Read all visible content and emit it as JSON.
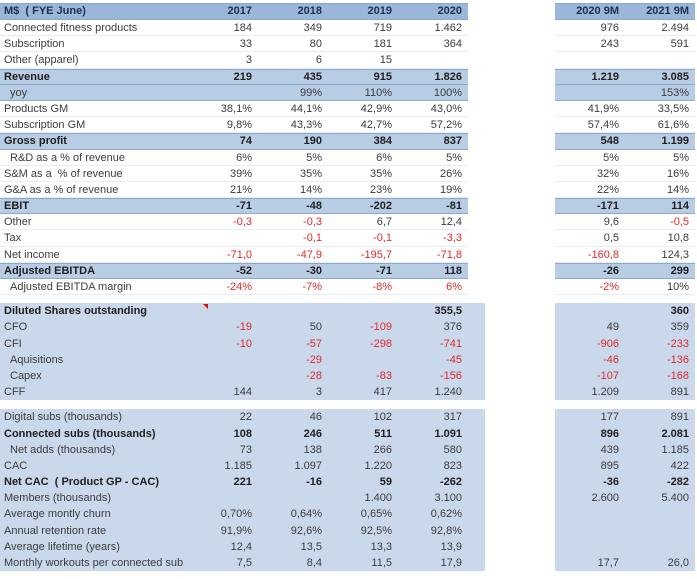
{
  "header": {
    "label": "M$  ( FYE June)",
    "year_columns": [
      "2017",
      "2018",
      "2019",
      "2020"
    ],
    "period_columns": [
      "2020 9M",
      "2021 9M"
    ]
  },
  "rows": [
    {
      "label": "Connected fitness products",
      "values": [
        "184",
        "349",
        "719",
        "1.462",
        "976",
        "2.494"
      ]
    },
    {
      "label": "Subscription",
      "values": [
        "33",
        "80",
        "181",
        "364",
        "243",
        "591"
      ]
    },
    {
      "label": "Other (apparel)",
      "values": [
        "3",
        "6",
        "15",
        "",
        "",
        ""
      ]
    },
    {
      "label": "Revenue",
      "bold": true,
      "band": "emph",
      "values": [
        "219",
        "435",
        "915",
        "1.826",
        "1.219",
        "3.085"
      ]
    },
    {
      "label": "yoy",
      "indent": 1,
      "band": "emph",
      "values": [
        "",
        "99%",
        "110%",
        "100%",
        "",
        "153%"
      ]
    },
    {
      "label": "Products GM",
      "values": [
        "38,1%",
        "44,1%",
        "42,9%",
        "43,0%",
        "41,9%",
        "33,5%"
      ]
    },
    {
      "label": "Subscription GM",
      "values": [
        "9,8%",
        "43,3%",
        "42,7%",
        "57,2%",
        "57,4%",
        "61,6%"
      ]
    },
    {
      "label": "Gross profit",
      "bold": true,
      "band": "emph",
      "values": [
        "74",
        "190",
        "384",
        "837",
        "548",
        "1.199"
      ]
    },
    {
      "label": "R&D as a % of revenue",
      "indent": 1,
      "values": [
        "6%",
        "5%",
        "6%",
        "5%",
        "5%",
        "5%"
      ]
    },
    {
      "label": "S&M as a  % of revenue",
      "values": [
        "39%",
        "35%",
        "35%",
        "26%",
        "32%",
        "16%"
      ]
    },
    {
      "label": "G&A as a % of revenue",
      "values": [
        "21%",
        "14%",
        "23%",
        "19%",
        "22%",
        "14%"
      ]
    },
    {
      "label": "EBIT",
      "bold": true,
      "band": "emph",
      "values": [
        "-71",
        "-48",
        "-202",
        "-81",
        "-171",
        "114"
      ]
    },
    {
      "label": "Other",
      "values": [
        "-0,3",
        "-0,3",
        "6,7",
        "12,4",
        "9,6",
        "-0,5"
      ]
    },
    {
      "label": "Tax",
      "values": [
        "",
        "-0,1",
        "-0,1",
        "-3,3",
        "0,5",
        "10,8"
      ]
    },
    {
      "label": "Net income",
      "values": [
        "-71,0",
        "-47,9",
        "-195,7",
        "-71,8",
        "-160,8",
        "124,3"
      ]
    },
    {
      "label": "Adjusted EBITDA",
      "bold": true,
      "band": "emph",
      "values": [
        "-52",
        "-30",
        "-71",
        "118",
        "-26",
        "299"
      ]
    },
    {
      "label": "Adjusted EBITDA margin",
      "indent": 1,
      "values": [
        "-24%",
        "-7%",
        "-8%",
        "6%",
        "-2%",
        "10%"
      ],
      "red_extra_cols": [
        3
      ]
    },
    {
      "spacer": true
    },
    {
      "label": "Diluted Shares outstanding",
      "bold": true,
      "band": "block",
      "comment": true,
      "values": [
        "",
        "",
        "",
        "355,5",
        "",
        "360"
      ]
    },
    {
      "label": "CFO",
      "band": "block",
      "values": [
        "-19",
        "50",
        "-109",
        "376",
        "49",
        "359"
      ]
    },
    {
      "label": "CFI",
      "band": "block",
      "values": [
        "-10",
        "-57",
        "-298",
        "-741",
        "-906",
        "-233"
      ]
    },
    {
      "label": "Aquisitions",
      "indent": 1,
      "band": "block",
      "values": [
        "",
        "-29",
        "",
        "-45",
        "-46",
        "-136"
      ]
    },
    {
      "label": "Capex",
      "indent": 1,
      "band": "block",
      "values": [
        "",
        "-28",
        "-83",
        "-156",
        "-107",
        "-168"
      ]
    },
    {
      "label": "CFF",
      "band": "block",
      "values": [
        "144",
        "3",
        "417",
        "1.240",
        "1.209",
        "891"
      ]
    },
    {
      "spacer": true
    },
    {
      "label": "Digital subs (thousands)",
      "band": "block",
      "values": [
        "22",
        "46",
        "102",
        "317",
        "177",
        "891"
      ]
    },
    {
      "label": "Connected subs (thousands)",
      "bold": true,
      "band": "block",
      "values": [
        "108",
        "246",
        "511",
        "1.091",
        "896",
        "2.081"
      ]
    },
    {
      "label": "Net adds (thousands)",
      "indent": 1,
      "band": "block",
      "values": [
        "73",
        "138",
        "266",
        "580",
        "439",
        "1.185"
      ]
    },
    {
      "label": "CAC",
      "band": "block",
      "values": [
        "1.185",
        "1.097",
        "1.220",
        "823",
        "895",
        "422"
      ]
    },
    {
      "label": "Net CAC  ( Product GP - CAC)",
      "bold": true,
      "band": "block",
      "values": [
        "221",
        "-16",
        "59",
        "-262",
        "-36",
        "-282"
      ]
    },
    {
      "label": "Members (thousands)",
      "band": "block",
      "values": [
        "",
        "",
        "1.400",
        "3.100",
        "2.600",
        "5.400"
      ]
    },
    {
      "label": "Average montly churn",
      "band": "block",
      "values": [
        "0,70%",
        "0,64%",
        "0,65%",
        "0,62%",
        "",
        ""
      ]
    },
    {
      "label": "Annual retention rate",
      "band": "block",
      "values": [
        "91,9%",
        "92,6%",
        "92,5%",
        "92,8%",
        "",
        ""
      ]
    },
    {
      "label": "Average lifetime (years)",
      "band": "block",
      "values": [
        "12,4",
        "13,5",
        "13,3",
        "13,9",
        "",
        ""
      ]
    },
    {
      "label": "Monthly workouts per connected sub",
      "band": "block",
      "values": [
        "7,5",
        "8,4",
        "11,5",
        "17,9",
        "17,7",
        "26,0"
      ]
    }
  ],
  "colors": {
    "header_band": "#9cb6da",
    "emphasis_band": "#b8cce4",
    "block_band": "#cad8ec",
    "band_border": "#8aa8d0",
    "gridline": "#e7edf6",
    "negative": "#e02a2a",
    "header_text": "#203050",
    "text": "#3c3c3c",
    "comment_indicator": "#d51010"
  }
}
